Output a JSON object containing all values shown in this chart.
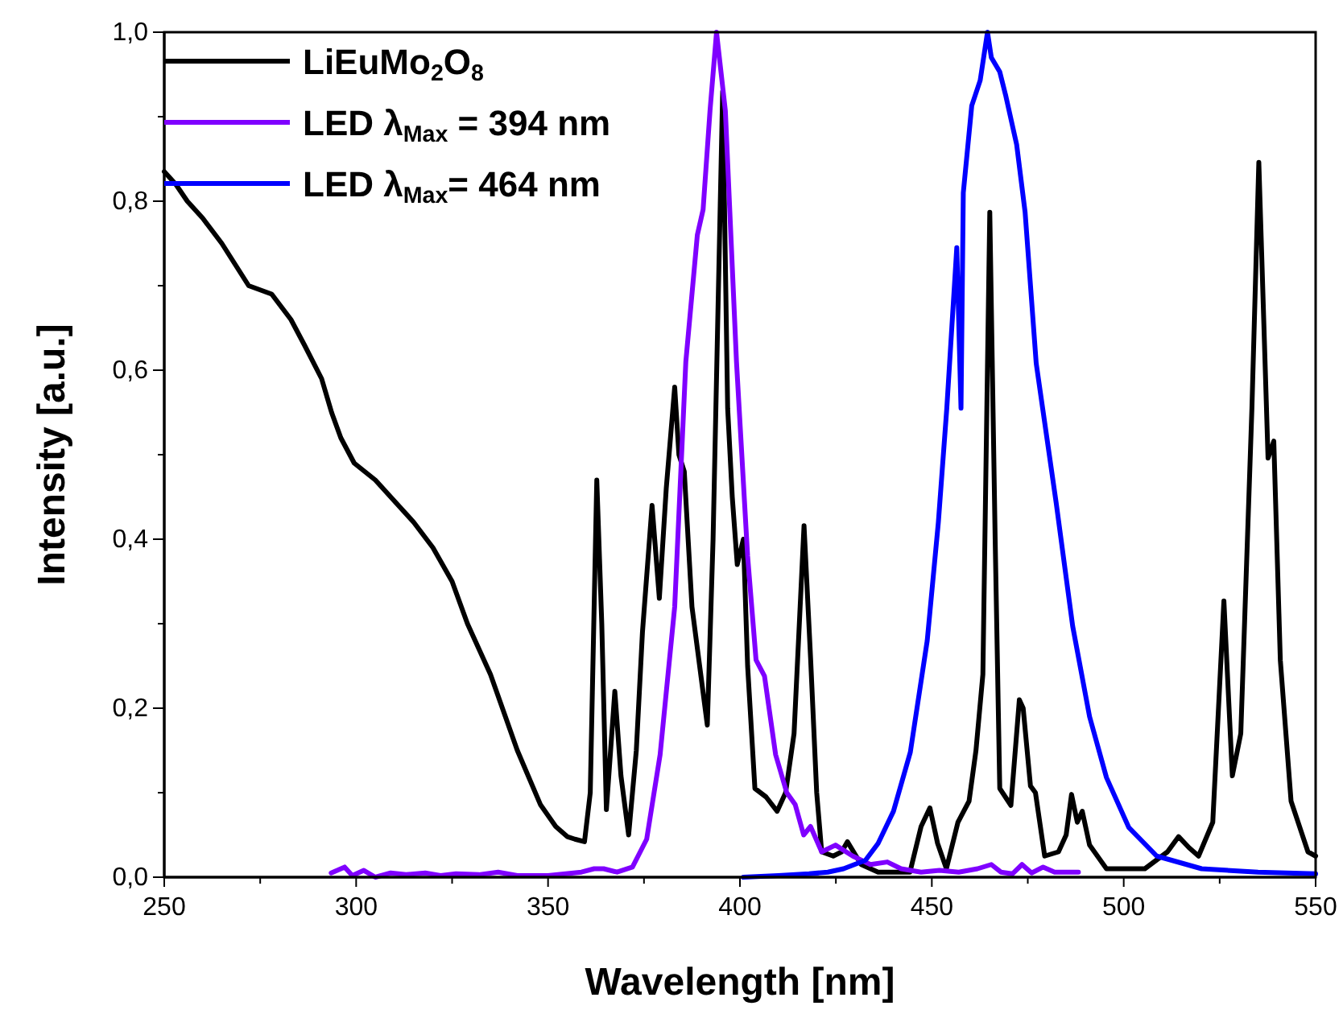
{
  "chart_data": {
    "type": "line",
    "xlabel": "Wavelength [nm]",
    "ylabel": "Intensity [a.u.]",
    "xlim": [
      250,
      550
    ],
    "xticks": [
      250,
      {
        "value": 275,
        "label": null
      },
      300,
      {
        "value": 325,
        "label": null
      },
      350,
      {
        "value": 375,
        "label": null
      },
      400,
      {
        "value": 425,
        "label": null
      },
      450,
      {
        "value": 475,
        "label": null
      },
      500,
      {
        "value": 525,
        "label": null
      },
      550
    ],
    "ylim": [
      0,
      1
    ],
    "yticks": [
      {
        "value": 0,
        "label": "0,0"
      },
      {
        "value": 0.1,
        "label": null
      },
      {
        "value": 0.2,
        "label": "0,2"
      },
      {
        "value": 0.3,
        "label": null
      },
      {
        "value": 0.4,
        "label": "0,4"
      },
      {
        "value": 0.5,
        "label": null
      },
      {
        "value": 0.6,
        "label": "0,6"
      },
      {
        "value": 0.7,
        "label": null
      },
      {
        "value": 0.8,
        "label": "0,8"
      },
      {
        "value": 0.9,
        "label": null
      },
      {
        "value": 1,
        "label": "1,0"
      }
    ],
    "grid": false,
    "legend": "top left",
    "series": [
      {
        "name": "LiEuMo$_{2}$O$_{8}$",
        "color": "#000000",
        "x": [
          250,
          253,
          256,
          260,
          265,
          272,
          278,
          283,
          286.5,
          291,
          293.6,
          296,
          299.5,
          305,
          311,
          315,
          320,
          325,
          329,
          335,
          342,
          348,
          352,
          355,
          357,
          359.5,
          361,
          362.7,
          364,
          365.2,
          367.4,
          369,
          371,
          373,
          374.6,
          377.1,
          379,
          380.8,
          383,
          384.1,
          385.5,
          387.5,
          389.5,
          391.5,
          393,
          395.5,
          396.8,
          398,
          399.3,
          400.9,
          402,
          403.9,
          406.8,
          409.7,
          411.9,
          414.1,
          416.7,
          418.4,
          420,
          421.3,
          424.3,
          426.5,
          428,
          431.6,
          436,
          444.3,
          447.2,
          449.5,
          451.5,
          453.8,
          456.8,
          459.7,
          461.5,
          463.3,
          465.1,
          466.5,
          467.7,
          470.6,
          472.8,
          473.8,
          475.7,
          477,
          479.4,
          483,
          485,
          486.4,
          487.9,
          489.2,
          491.1,
          495.5,
          505.5,
          511.4,
          514.3,
          517,
          519.5,
          523.2,
          526.1,
          528.3,
          530.5,
          533.4,
          535.2,
          537.6,
          539.1,
          540.8,
          543.6,
          548,
          550
        ],
        "values": [
          0.835,
          0.82,
          0.8,
          0.78,
          0.75,
          0.7,
          0.69,
          0.66,
          0.63,
          0.59,
          0.55,
          0.52,
          0.49,
          0.47,
          0.44,
          0.42,
          0.39,
          0.35,
          0.3,
          0.24,
          0.15,
          0.086,
          0.06,
          0.048,
          0.045,
          0.042,
          0.1,
          0.47,
          0.3,
          0.08,
          0.22,
          0.12,
          0.05,
          0.15,
          0.29,
          0.44,
          0.33,
          0.46,
          0.58,
          0.5,
          0.48,
          0.32,
          0.25,
          0.18,
          0.4,
          0.93,
          0.555,
          0.45,
          0.37,
          0.4,
          0.25,
          0.105,
          0.095,
          0.078,
          0.1,
          0.17,
          0.416,
          0.26,
          0.1,
          0.03,
          0.025,
          0.03,
          0.042,
          0.015,
          0.006,
          0.006,
          0.06,
          0.082,
          0.04,
          0.01,
          0.065,
          0.09,
          0.15,
          0.24,
          0.787,
          0.4,
          0.105,
          0.085,
          0.21,
          0.2,
          0.108,
          0.1,
          0.025,
          0.03,
          0.05,
          0.098,
          0.065,
          0.078,
          0.038,
          0.01,
          0.01,
          0.03,
          0.048,
          0.035,
          0.025,
          0.065,
          0.327,
          0.12,
          0.17,
          0.555,
          0.846,
          0.496,
          0.516,
          0.257,
          0.09,
          0.03,
          0.025
        ]
      },
      {
        "name": "LED λ$_{Max}$ = 394 nm",
        "color": "#7f00ff",
        "x": [
          293.5,
          297,
          299,
          302,
          305,
          309,
          313,
          318,
          322,
          326,
          332,
          337,
          342,
          350,
          358.7,
          362,
          364.5,
          368,
          372,
          375.7,
          379.2,
          383,
          385.9,
          388.9,
          390.4,
          392.2,
          393.9,
          396.2,
          399.1,
          402,
          404.2,
          406.4,
          409.3,
          412.2,
          414.4,
          416.6,
          418.4,
          421.3,
          424.9,
          429.4,
          434,
          438.4,
          442,
          447.2,
          452,
          457,
          461.9,
          465.5,
          468,
          471,
          473.5,
          476,
          479,
          482,
          488.2
        ],
        "values": [
          0.005,
          0.012,
          0.002,
          0.008,
          0,
          0.005,
          0.003,
          0.005,
          0.002,
          0.004,
          0.003,
          0.006,
          0.002,
          0.002,
          0.006,
          0.01,
          0.01,
          0.006,
          0.012,
          0.045,
          0.145,
          0.32,
          0.61,
          0.76,
          0.79,
          0.907,
          1,
          0.907,
          0.61,
          0.38,
          0.257,
          0.238,
          0.145,
          0.1,
          0.086,
          0.05,
          0.06,
          0.03,
          0.038,
          0.025,
          0.015,
          0.018,
          0.01,
          0.006,
          0.008,
          0.006,
          0.01,
          0.015,
          0.006,
          0.004,
          0.015,
          0.005,
          0.012,
          0.006,
          0.006
        ]
      },
      {
        "name": "LED λ$_{Max}$= 464 nm",
        "color": "#0000ff",
        "x": [
          400.9,
          410,
          418,
          422.9,
          427,
          432.7,
          436,
          440,
          444.4,
          448.8,
          451.7,
          453.9,
          456.5,
          457.6,
          458.2,
          460.4,
          462.6,
          464.5,
          465.5,
          467.7,
          469.2,
          472.1,
          474.3,
          477.2,
          482.4,
          486.7,
          491.1,
          495.5,
          501.3,
          508.6,
          520.3,
          535,
          550
        ],
        "values": [
          0,
          0.002,
          0.004,
          0.006,
          0.01,
          0.02,
          0.04,
          0.078,
          0.148,
          0.28,
          0.42,
          0.555,
          0.745,
          0.555,
          0.81,
          0.913,
          0.943,
          1,
          0.97,
          0.953,
          0.926,
          0.867,
          0.787,
          0.608,
          0.443,
          0.297,
          0.19,
          0.118,
          0.059,
          0.025,
          0.01,
          0.006,
          0.004
        ]
      }
    ]
  }
}
